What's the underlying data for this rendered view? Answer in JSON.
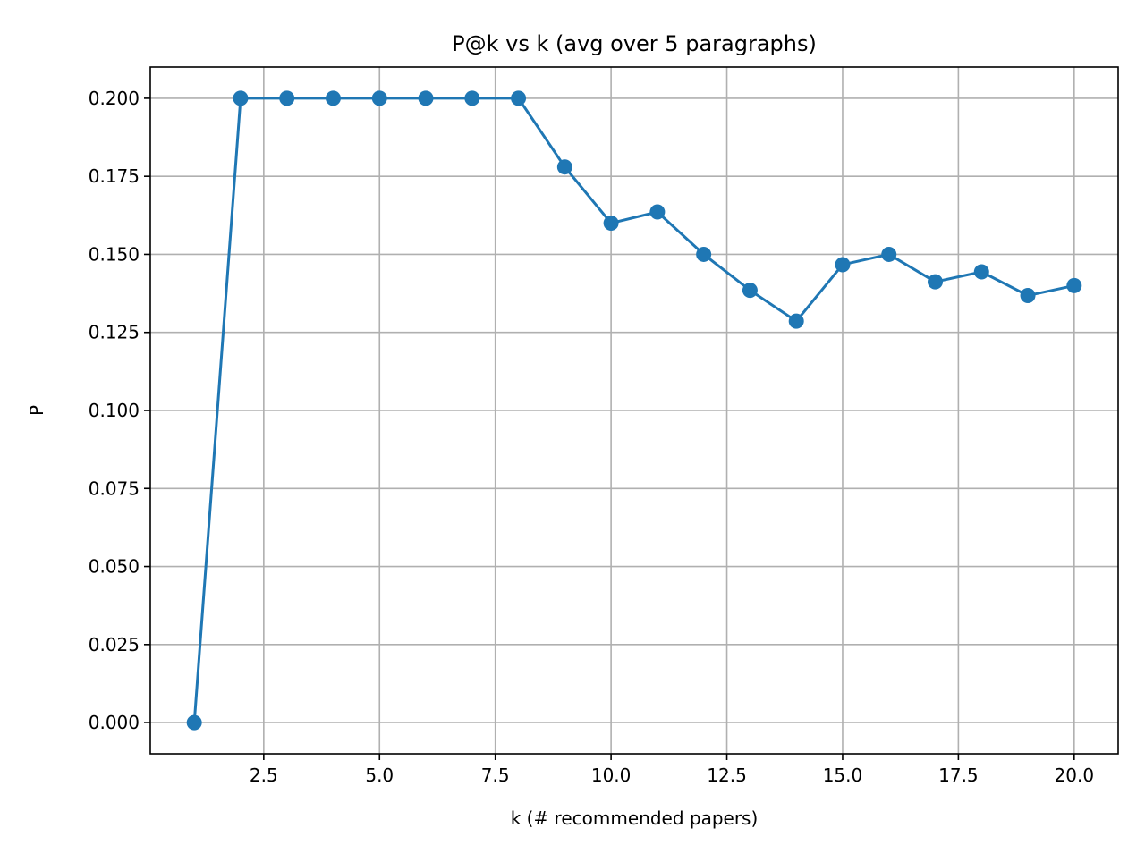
{
  "chart_data": {
    "type": "line",
    "title": "P@k vs k  (avg over 5 paragraphs)",
    "xlabel": "k (# recommended papers)",
    "ylabel": "P",
    "xlim": [
      0.05,
      20.95
    ],
    "ylim": [
      -0.01,
      0.21
    ],
    "x_ticks": [
      2.5,
      5.0,
      7.5,
      10.0,
      12.5,
      15.0,
      17.5,
      20.0
    ],
    "x_tick_labels": [
      "2.5",
      "5.0",
      "7.5",
      "10.0",
      "12.5",
      "15.0",
      "17.5",
      "20.0"
    ],
    "y_ticks": [
      0.0,
      0.025,
      0.05,
      0.075,
      0.1,
      0.125,
      0.15,
      0.175,
      0.2
    ],
    "y_tick_labels": [
      "0.000",
      "0.025",
      "0.050",
      "0.075",
      "0.100",
      "0.125",
      "0.150",
      "0.175",
      "0.200"
    ],
    "grid": true,
    "legend": "none",
    "series": [
      {
        "color": "#1f77b4",
        "marker": "circle",
        "x": [
          1,
          2,
          3,
          4,
          5,
          6,
          7,
          8,
          9,
          10,
          11,
          12,
          13,
          14,
          15,
          16,
          17,
          18,
          19,
          20
        ],
        "y": [
          0.0,
          0.2,
          0.2,
          0.2,
          0.2,
          0.2,
          0.2,
          0.2,
          0.178,
          0.16,
          0.1636,
          0.15,
          0.1385,
          0.1286,
          0.1467,
          0.15,
          0.1412,
          0.1444,
          0.1368,
          0.14
        ]
      }
    ]
  }
}
